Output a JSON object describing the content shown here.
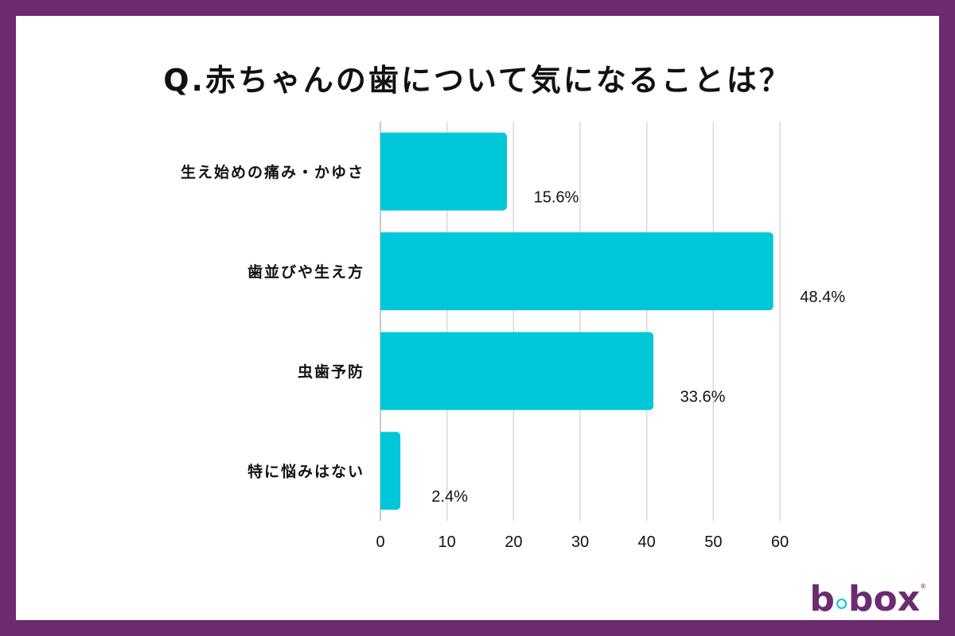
{
  "colors": {
    "frame": "#6b2b6e",
    "bar": "#00c8d8",
    "grid": "#d9d9d9",
    "text": "#111111"
  },
  "logo": {
    "text_before": "b",
    "text_after": "box"
  },
  "chart_data": {
    "type": "bar",
    "orientation": "horizontal",
    "title": "Q.赤ちゃんの歯について気になることは？",
    "xlabel": "",
    "ylabel": "",
    "xlim": [
      0,
      60
    ],
    "x_ticks": [
      0,
      10,
      20,
      30,
      40,
      50,
      60
    ],
    "grid": true,
    "categories": [
      "生え始めの痛み・かゆさ",
      "歯並びや生え方",
      "虫歯予防",
      "特に悩みはない"
    ],
    "values": [
      19,
      59,
      41,
      3
    ],
    "value_labels": [
      "15.6%",
      "48.4%",
      "33.6%",
      "2.4%"
    ]
  }
}
